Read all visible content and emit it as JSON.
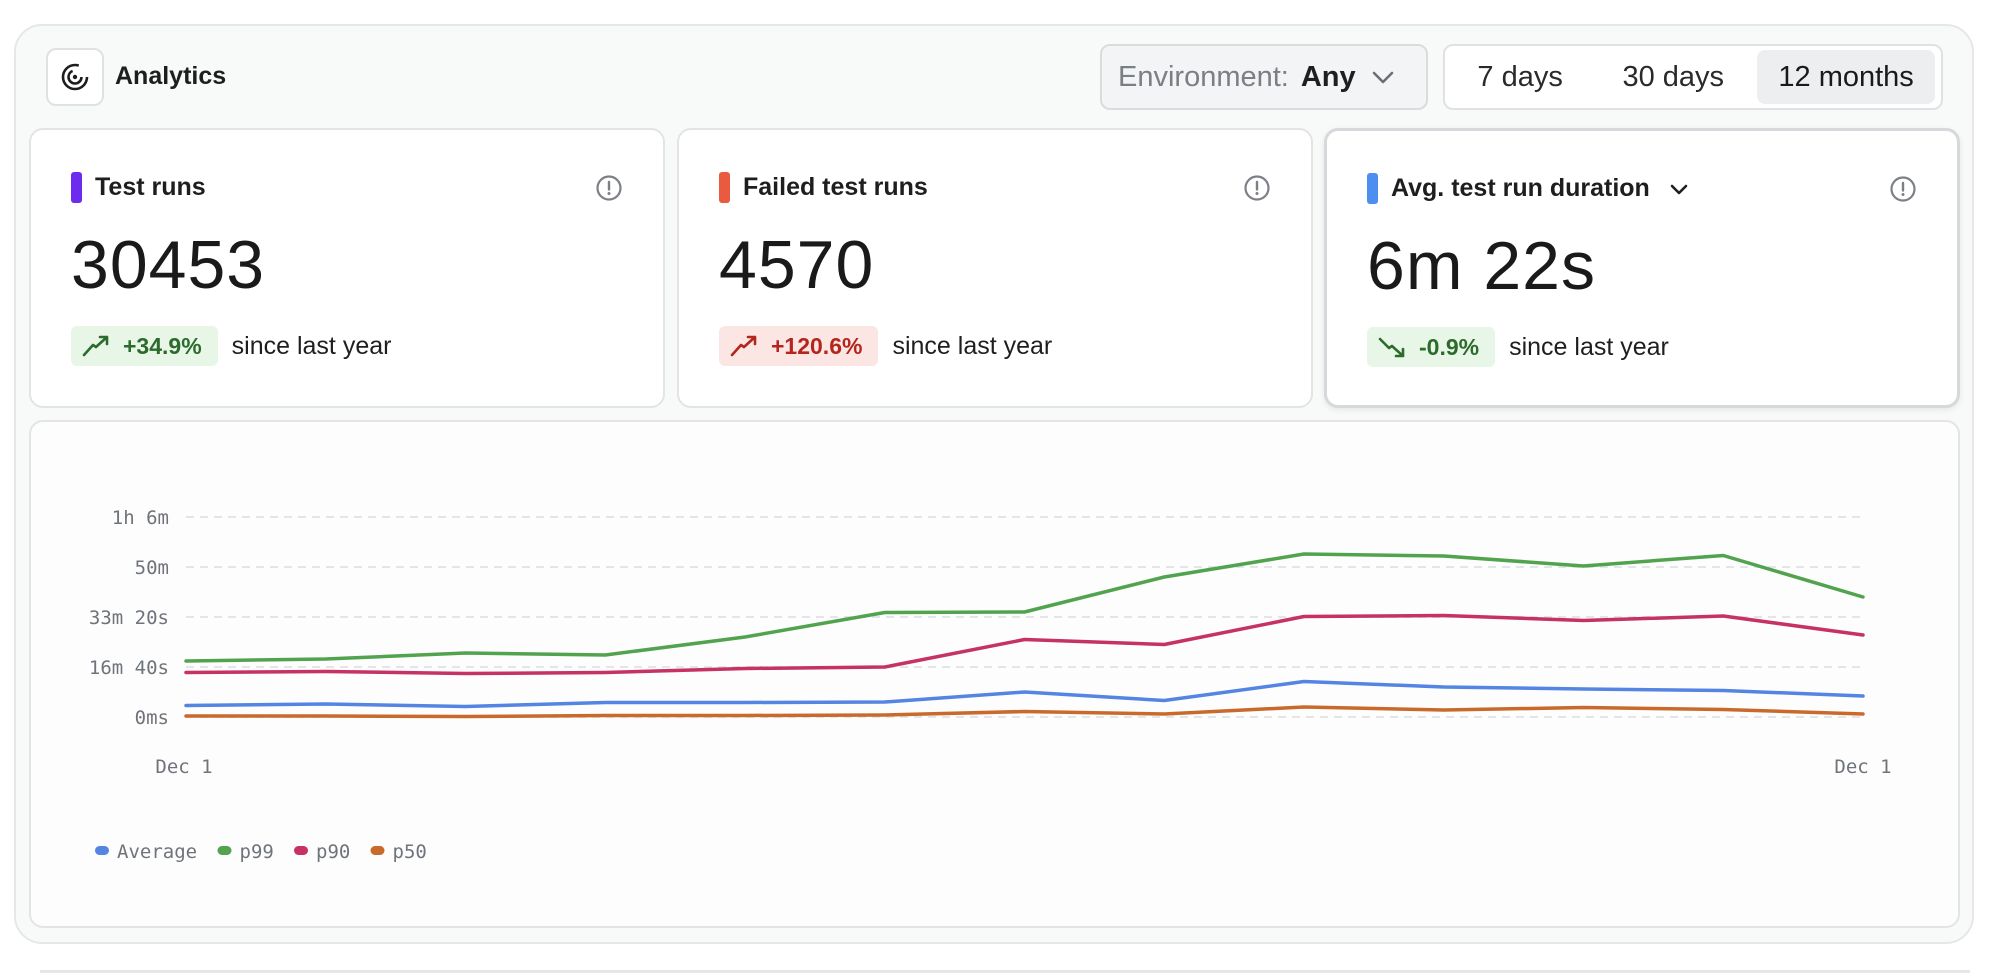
{
  "app": {
    "title": "Analytics"
  },
  "filters": {
    "environment_label": "Environment:",
    "environment_value": "Any",
    "ranges": [
      "7 days",
      "30 days",
      "12 months"
    ],
    "selected_range": "12 months"
  },
  "cards": [
    {
      "title": "Test runs",
      "value": "30453",
      "delta": "+34.9%",
      "since": "since last year",
      "swatch": "#6c2bee",
      "trend": "up",
      "tone": "green"
    },
    {
      "title": "Failed test runs",
      "value": "4570",
      "delta": "+120.6%",
      "since": "since last year",
      "swatch": "#ea5a3f",
      "trend": "up",
      "tone": "red"
    },
    {
      "title": "Avg. test run duration",
      "value": "6m 22s",
      "delta": "-0.9%",
      "since": "since last year",
      "swatch": "#4d8ef0",
      "trend": "down",
      "tone": "green"
    }
  ],
  "colors": {
    "average": "#5485e2",
    "p99": "#52a34e",
    "p90": "#c53263",
    "p50": "#c96a2c"
  },
  "chart_data": {
    "type": "line",
    "title": "",
    "xlabel": "",
    "ylabel": "",
    "x_tick_labels": [
      "Dec 1",
      "Dec 1"
    ],
    "y_tick_labels": [
      "0ms",
      "16m 40s",
      "33m 20s",
      "50m",
      "1h 6m"
    ],
    "y_ticks_seconds": [
      0,
      1000,
      2000,
      3000,
      4000
    ],
    "ylim_seconds": [
      0,
      4000
    ],
    "x": [
      0,
      1,
      2,
      3,
      4,
      5,
      6,
      7,
      8,
      9,
      10,
      11,
      12
    ],
    "series": [
      {
        "name": "Average",
        "color": "#5485e2",
        "values": [
          230,
          260,
          210,
          290,
          290,
          300,
          500,
          330,
          710,
          600,
          560,
          530,
          420
        ]
      },
      {
        "name": "p99",
        "color": "#52a34e",
        "values": [
          1120,
          1160,
          1280,
          1240,
          1600,
          2090,
          2100,
          2800,
          3260,
          3220,
          3020,
          3230,
          2400
        ]
      },
      {
        "name": "p90",
        "color": "#c53263",
        "values": [
          890,
          910,
          870,
          890,
          970,
          1000,
          1550,
          1450,
          2010,
          2030,
          1930,
          2020,
          1640
        ]
      },
      {
        "name": "p50",
        "color": "#c96a2c",
        "values": [
          20,
          20,
          10,
          30,
          30,
          40,
          110,
          60,
          200,
          140,
          190,
          150,
          60
        ]
      }
    ],
    "legend": [
      "Average",
      "p99",
      "p90",
      "p50"
    ],
    "legend_position": "bottom-left",
    "grid": true
  }
}
